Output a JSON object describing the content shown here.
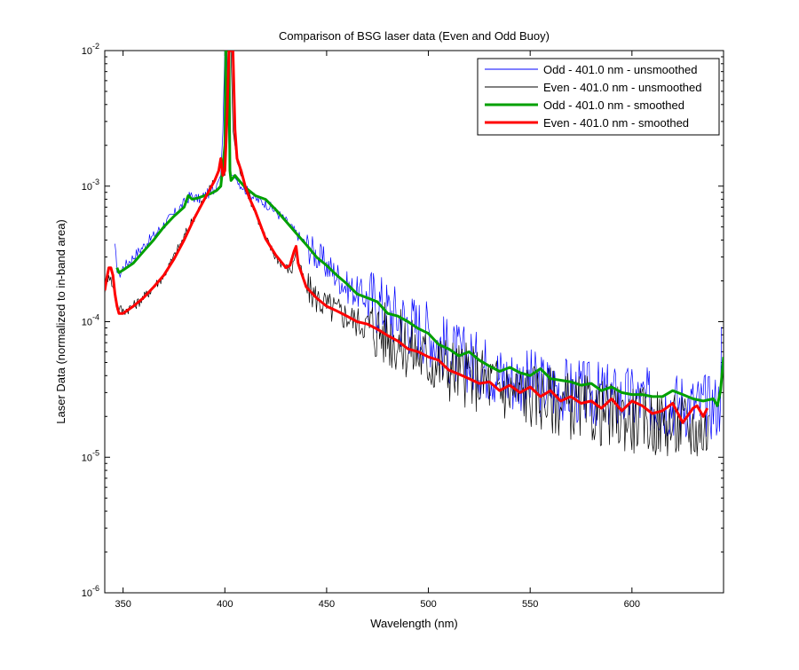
{
  "chart_data": {
    "type": "line",
    "title": "Comparison of BSG laser data (Even and Odd Buoy)",
    "xlabel": "Wavelength (nm)",
    "ylabel": "Laser Data (normalized to in-band area)",
    "xlim": [
      341,
      645
    ],
    "ylim": [
      1e-06,
      0.01
    ],
    "yscale": "log",
    "grid": false,
    "legend_position": "top-right",
    "xticks": [
      350,
      400,
      450,
      500,
      550,
      600
    ],
    "xtick_labels": [
      "350",
      "400",
      "450",
      "500",
      "550",
      "600"
    ],
    "yticks": [
      1e-06,
      1e-05,
      0.0001,
      0.001,
      0.01
    ],
    "ytick_labels": [
      {
        "base": "10",
        "exp": "-6"
      },
      {
        "base": "10",
        "exp": "-5"
      },
      {
        "base": "10",
        "exp": "-4"
      },
      {
        "base": "10",
        "exp": "-3"
      },
      {
        "base": "10",
        "exp": "-2"
      }
    ],
    "series": [
      {
        "name": "Odd - 401.0 nm - unsmoothed",
        "color": "#0000ff",
        "style": "thin-noisy",
        "x": [
          346,
          347,
          348,
          350,
          355,
          360,
          365,
          370,
          375,
          380,
          383,
          387,
          390,
          395,
          398,
          399,
          400,
          400.5,
          401,
          402,
          403,
          404,
          406,
          410,
          415,
          420,
          425,
          430,
          435,
          440,
          445,
          450,
          455,
          460,
          465,
          470,
          475,
          480,
          485,
          490,
          495,
          500,
          505,
          510,
          515,
          520,
          525,
          530,
          535,
          540,
          545,
          550,
          555,
          560,
          565,
          570,
          575,
          580,
          585,
          590,
          595,
          600,
          605,
          610,
          615,
          620,
          625,
          630,
          635,
          640,
          643,
          644
        ],
        "values": [
          0.00035,
          0.00025,
          0.00022,
          0.00025,
          0.0003,
          0.00036,
          0.00043,
          0.00052,
          0.00062,
          0.00075,
          0.00085,
          0.0008,
          0.00085,
          0.00095,
          0.0012,
          0.0025,
          0.01,
          0.01,
          0.01,
          0.0018,
          0.0012,
          0.0012,
          0.0011,
          0.00095,
          0.0008,
          0.00075,
          0.00065,
          0.00055,
          0.00045,
          0.00037,
          0.00031,
          0.00026,
          0.00022,
          0.00018,
          0.000165,
          0.00015,
          0.00014,
          0.00012,
          0.00011,
          0.0001,
          9e-05,
          8.5e-05,
          7e-05,
          6e-05,
          5.5e-05,
          5.2e-05,
          4.8e-05,
          4.6e-05,
          4e-05,
          3.8e-05,
          3.7e-05,
          3.6e-05,
          3.4e-05,
          3.3e-05,
          3.2e-05,
          3.1e-05,
          3e-05,
          2.9e-05,
          2.9e-05,
          2.8e-05,
          2.7e-05,
          2.7e-05,
          2.6e-05,
          2.6e-05,
          2.5e-05,
          2.5e-05,
          2.5e-05,
          2.4e-05,
          2.4e-05,
          2.4e-05,
          2.5e-05,
          6.5e-05
        ]
      },
      {
        "name": "Even - 401.0 nm - unsmoothed",
        "color": "#000000",
        "style": "thin-noisy",
        "x": [
          341,
          343,
          345,
          347,
          350,
          355,
          360,
          365,
          370,
          375,
          380,
          385,
          390,
          395,
          398,
          399,
          400,
          402,
          403,
          404,
          406,
          410,
          415,
          420,
          425,
          430,
          433,
          435,
          437,
          440,
          445,
          450,
          455,
          460,
          465,
          470,
          475,
          480,
          485,
          490,
          495,
          500,
          505,
          510,
          515,
          520,
          525,
          530,
          535,
          540,
          545,
          550,
          555,
          560,
          565,
          570,
          575,
          580,
          585,
          590,
          595,
          600,
          605,
          610,
          615,
          620,
          625,
          630,
          635,
          638
        ],
        "values": [
          0.00017,
          0.00023,
          0.00018,
          0.00013,
          0.00012,
          0.00013,
          0.00015,
          0.00018,
          0.00022,
          0.0003,
          0.00042,
          0.0006,
          0.0008,
          0.0011,
          0.0015,
          0.0012,
          0.0012,
          0.01,
          0.01,
          0.0026,
          0.0015,
          0.001,
          0.00065,
          0.00041,
          0.0003,
          0.00025,
          0.00024,
          0.00035,
          0.00025,
          0.00018,
          0.00015,
          0.00013,
          0.00012,
          0.00011,
          0.0001,
          9.5e-05,
          8.8e-05,
          8e-05,
          7.2e-05,
          6.5e-05,
          5.8e-05,
          5.2e-05,
          4.9e-05,
          4.6e-05,
          4.2e-05,
          4e-05,
          3.8e-05,
          3.6e-05,
          3.3e-05,
          3.1e-05,
          3e-05,
          2.9e-05,
          2.8e-05,
          2.7e-05,
          2.5e-05,
          2.4e-05,
          2.3e-05,
          2.2e-05,
          2.1e-05,
          2e-05,
          2e-05,
          1.9e-05,
          1.9e-05,
          1.8e-05,
          1.8e-05,
          1.7e-05,
          1.7e-05,
          1.6e-05,
          1.6e-05,
          1.6e-05
        ]
      },
      {
        "name": "Odd - 401.0 nm - smoothed",
        "color": "#00a000",
        "style": "thick",
        "x": [
          347,
          348,
          350,
          355,
          360,
          365,
          370,
          375,
          380,
          382,
          384,
          387,
          390,
          393,
          396,
          398,
          399,
          400,
          400.5,
          401,
          402,
          402.5,
          403,
          405,
          407,
          410,
          415,
          420,
          425,
          430,
          435,
          440,
          445,
          450,
          455,
          460,
          465,
          470,
          475,
          480,
          485,
          490,
          495,
          500,
          505,
          510,
          515,
          520,
          525,
          530,
          535,
          540,
          545,
          550,
          555,
          560,
          565,
          570,
          575,
          580,
          585,
          590,
          595,
          600,
          605,
          610,
          615,
          620,
          625,
          630,
          635,
          640,
          642,
          643.5,
          645
        ],
        "values": [
          0.00025,
          0.00023,
          0.00024,
          0.00027,
          0.00033,
          0.0004,
          0.0005,
          0.0006,
          0.0007,
          0.00085,
          0.0008,
          0.00082,
          0.00085,
          0.00088,
          0.00093,
          0.001,
          0.0014,
          0.002,
          0.01,
          0.01,
          0.01,
          0.0013,
          0.0011,
          0.0012,
          0.0011,
          0.00098,
          0.00085,
          0.0008,
          0.00067,
          0.00055,
          0.00045,
          0.00037,
          0.0003,
          0.00026,
          0.00022,
          0.00019,
          0.00016,
          0.00015,
          0.00014,
          0.000115,
          0.00011,
          0.0001,
          8.9e-05,
          8.2e-05,
          6.8e-05,
          6.3e-05,
          5.6e-05,
          6e-05,
          5.2e-05,
          4.7e-05,
          4.3e-05,
          4.6e-05,
          4.2e-05,
          4e-05,
          4.5e-05,
          3.8e-05,
          3.7e-05,
          3.6e-05,
          3.4e-05,
          3.5e-05,
          3.1e-05,
          3.3e-05,
          3e-05,
          2.9e-05,
          2.9e-05,
          2.8e-05,
          2.8e-05,
          3.1e-05,
          2.9e-05,
          2.7e-05,
          2.6e-05,
          2.7e-05,
          2.4e-05,
          3.1e-05,
          5.5e-05
        ]
      },
      {
        "name": "Even - 401.0 nm - smoothed",
        "color": "#ff0000",
        "style": "thick",
        "x": [
          341,
          342,
          343,
          344,
          345,
          346,
          347,
          348,
          350,
          355,
          360,
          365,
          370,
          375,
          380,
          385,
          390,
          395,
          397,
          398,
          399,
          400,
          401,
          402,
          403,
          404,
          405,
          406,
          408,
          410,
          412,
          415,
          420,
          425,
          430,
          432,
          434,
          435,
          436,
          438,
          440,
          445,
          450,
          455,
          460,
          465,
          470,
          475,
          480,
          485,
          490,
          495,
          500,
          505,
          510,
          515,
          520,
          525,
          530,
          535,
          540,
          545,
          550,
          555,
          560,
          565,
          570,
          575,
          580,
          585,
          590,
          595,
          600,
          605,
          610,
          615,
          620,
          625,
          630,
          632,
          635,
          637
        ],
        "values": [
          0.00017,
          0.00021,
          0.00025,
          0.00025,
          0.00022,
          0.00016,
          0.00013,
          0.000115,
          0.000115,
          0.00013,
          0.00015,
          0.00018,
          0.00022,
          0.00029,
          0.0004,
          0.00058,
          0.0008,
          0.0011,
          0.0013,
          0.0016,
          0.0012,
          0.0013,
          0.003,
          0.01,
          0.01,
          0.01,
          0.0026,
          0.0016,
          0.0013,
          0.001,
          0.00082,
          0.00065,
          0.00041,
          0.00031,
          0.00025,
          0.00026,
          0.00033,
          0.00036,
          0.00027,
          0.00022,
          0.00018,
          0.00015,
          0.00013,
          0.00012,
          0.00011,
          0.0001,
          9.6e-05,
          8.8e-05,
          7.9e-05,
          7.2e-05,
          6.3e-05,
          6e-05,
          5.5e-05,
          5.2e-05,
          4.4e-05,
          4.1e-05,
          3.8e-05,
          3.5e-05,
          3.6e-05,
          3.1e-05,
          3.4e-05,
          3e-05,
          3.3e-05,
          2.8e-05,
          3.1e-05,
          2.6e-05,
          2.8e-05,
          2.5e-05,
          2.6e-05,
          2.3e-05,
          2.7e-05,
          2.2e-05,
          2.6e-05,
          2.4e-05,
          2.1e-05,
          2.2e-05,
          2.5e-05,
          1.8e-05,
          2.3e-05,
          2.4e-05,
          2e-05,
          2.3e-05
        ]
      }
    ]
  }
}
